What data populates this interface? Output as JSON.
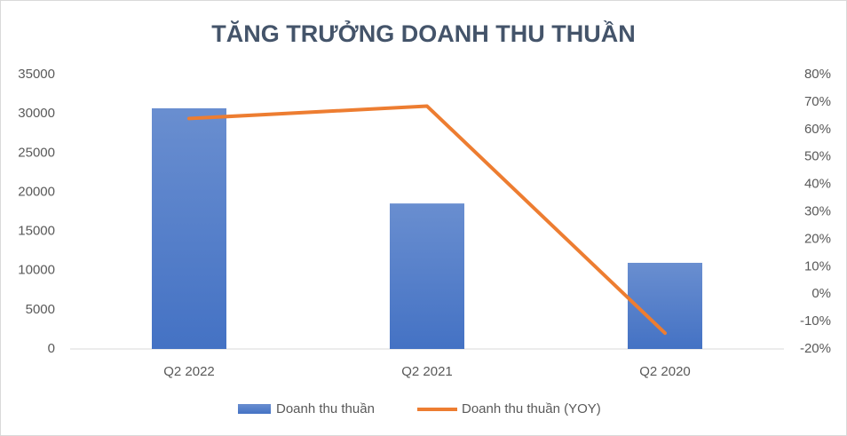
{
  "chart_data": {
    "type": "bar",
    "title": "TĂNG TRƯỞNG DOANH THU THUẦN",
    "categories": [
      "Q2 2022",
      "Q2 2021",
      "Q2 2020"
    ],
    "series": [
      {
        "name": "Doanh thu thuần",
        "type": "bar",
        "color": "#4472c4",
        "values": [
          30700,
          18560,
          10990
        ]
      },
      {
        "name": "Doanh thu thuần (YOY)",
        "type": "line",
        "axis": "y2",
        "color": "#ed7d31",
        "values": [
          64,
          68.5,
          -14.2
        ]
      }
    ],
    "ylim": [
      0,
      35000
    ],
    "yticks": [
      0,
      5000,
      10000,
      15000,
      20000,
      25000,
      30000,
      35000
    ],
    "y2lim": [
      -20,
      80
    ],
    "y2ticks": [
      {
        "value": -20,
        "label": "-20%"
      },
      {
        "value": -10,
        "label": "-10%"
      },
      {
        "value": 0,
        "label": "0%"
      },
      {
        "value": 10,
        "label": "10%"
      },
      {
        "value": 20,
        "label": "20%"
      },
      {
        "value": 30,
        "label": "30%"
      },
      {
        "value": 40,
        "label": "40%"
      },
      {
        "value": 50,
        "label": "50%"
      },
      {
        "value": 60,
        "label": "60%"
      },
      {
        "value": 70,
        "label": "70%"
      },
      {
        "value": 80,
        "label": "80%"
      }
    ],
    "grid": false,
    "legend": "bottom"
  }
}
